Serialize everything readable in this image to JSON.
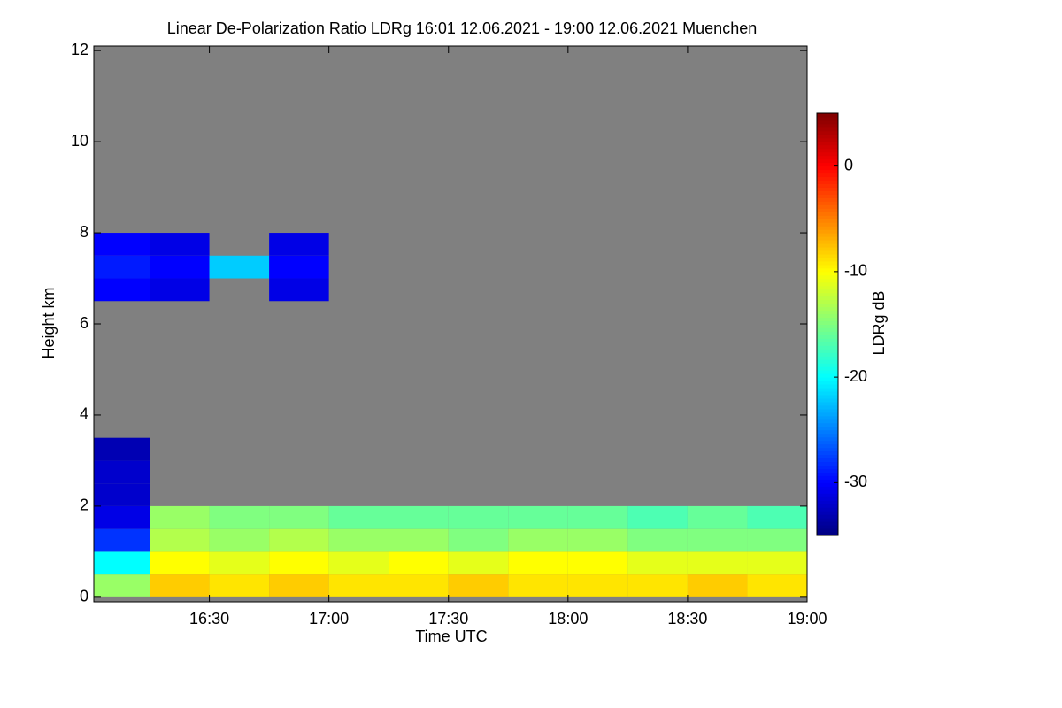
{
  "chart_data": {
    "type": "heatmap",
    "title": "Linear De-Polarization Ratio LDRg   16:01 12.06.2021 - 19:00 12.06.2021 Muenchen",
    "xlabel": "Time UTC",
    "ylabel": "Height km",
    "colorbar_label": "LDRg dB",
    "colormap": "jet",
    "null_color": "#808080",
    "x": [
      16.125,
      16.375,
      16.625,
      16.875,
      17.125,
      17.375,
      17.625,
      17.875,
      18.125,
      18.375,
      18.625,
      18.875
    ],
    "y": [
      0.25,
      0.75,
      1.25,
      1.75,
      2.25,
      2.75,
      3.25,
      3.75,
      4.25,
      4.75,
      5.25,
      5.75,
      6.25,
      6.75,
      7.25,
      7.75,
      8.25,
      8.75,
      9.25,
      9.75,
      10.25,
      10.75,
      11.25,
      11.75
    ],
    "z": [
      [
        -14,
        -8,
        -9,
        -8,
        -9,
        -9,
        -8,
        -9,
        -9,
        -9,
        -8,
        -9
      ],
      [
        -20,
        -10,
        -11,
        -10,
        -11,
        -10,
        -11,
        -10,
        -10,
        -11,
        -11,
        -11
      ],
      [
        -28,
        -13,
        -14,
        -13,
        -14,
        -14,
        -15,
        -14,
        -14,
        -15,
        -15,
        -15
      ],
      [
        -31,
        -14,
        -15,
        -15,
        -16,
        -16,
        -16,
        -16,
        -16,
        -17,
        -16,
        -17
      ],
      [
        -32,
        null,
        null,
        null,
        null,
        null,
        null,
        null,
        null,
        null,
        null,
        null
      ],
      [
        -32,
        null,
        null,
        null,
        null,
        null,
        null,
        null,
        null,
        null,
        null,
        null
      ],
      [
        -33,
        null,
        null,
        null,
        null,
        null,
        null,
        null,
        null,
        null,
        null,
        null
      ],
      [
        null,
        null,
        null,
        null,
        null,
        null,
        null,
        null,
        null,
        null,
        null,
        null
      ],
      [
        null,
        null,
        null,
        null,
        null,
        null,
        null,
        null,
        null,
        null,
        null,
        null
      ],
      [
        null,
        null,
        null,
        null,
        null,
        null,
        null,
        null,
        null,
        null,
        null,
        null
      ],
      [
        null,
        null,
        null,
        null,
        null,
        null,
        null,
        null,
        null,
        null,
        null,
        null
      ],
      [
        null,
        null,
        null,
        null,
        null,
        null,
        null,
        null,
        null,
        null,
        null,
        null
      ],
      [
        null,
        null,
        null,
        null,
        null,
        null,
        null,
        null,
        null,
        null,
        null,
        null
      ],
      [
        -30,
        -31,
        null,
        -31,
        null,
        null,
        null,
        null,
        null,
        null,
        null,
        null
      ],
      [
        -29,
        -30,
        -22,
        -30,
        null,
        null,
        null,
        null,
        null,
        null,
        null,
        null
      ],
      [
        -30,
        -31,
        null,
        -31,
        null,
        null,
        null,
        null,
        null,
        null,
        null,
        null
      ],
      [
        null,
        null,
        null,
        null,
        null,
        null,
        null,
        null,
        null,
        null,
        null,
        null
      ],
      [
        null,
        null,
        null,
        null,
        null,
        null,
        null,
        null,
        null,
        null,
        null,
        null
      ],
      [
        null,
        null,
        null,
        null,
        null,
        null,
        null,
        null,
        null,
        null,
        null,
        null
      ],
      [
        null,
        null,
        null,
        null,
        null,
        null,
        null,
        null,
        null,
        null,
        null,
        null
      ],
      [
        null,
        null,
        null,
        null,
        null,
        null,
        null,
        null,
        null,
        null,
        null,
        null
      ],
      [
        null,
        null,
        null,
        null,
        null,
        null,
        null,
        null,
        null,
        null,
        null,
        null
      ],
      [
        null,
        null,
        null,
        null,
        null,
        null,
        null,
        null,
        null,
        null,
        null,
        null
      ],
      [
        null,
        null,
        null,
        null,
        null,
        null,
        null,
        null,
        null,
        null,
        null,
        null
      ]
    ],
    "xlim": [
      16.0167,
      19.0
    ],
    "xticks": [
      {
        "value": 16.5,
        "label": "16:30"
      },
      {
        "value": 17.0,
        "label": "17:00"
      },
      {
        "value": 17.5,
        "label": "17:30"
      },
      {
        "value": 18.0,
        "label": "18:00"
      },
      {
        "value": 18.5,
        "label": "18:30"
      },
      {
        "value": 19.0,
        "label": "19:00"
      }
    ],
    "ylim": [
      -0.1,
      12.1
    ],
    "yticks": [
      0,
      2,
      4,
      6,
      8,
      10,
      12
    ],
    "zlim": [
      -35,
      5
    ],
    "zticks": [
      0,
      -10,
      -20,
      -30
    ]
  }
}
